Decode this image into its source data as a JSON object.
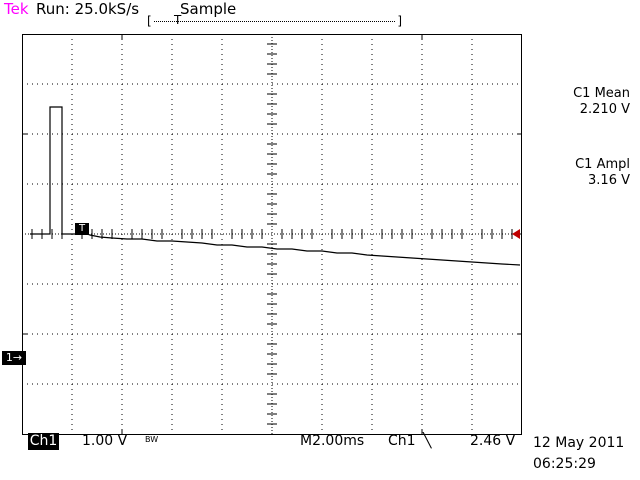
{
  "header": {
    "brand": "Tek",
    "run_status": "Run: 25.0kS/s",
    "acq_mode": "Sample",
    "timebar_left": "[",
    "timebar_right": "]",
    "timebar_trigger": "T"
  },
  "markers": {
    "channel_marker": "1→",
    "trigger_marker": "T"
  },
  "measurements": [
    {
      "label": "C1 Mean",
      "value": "2.210 V"
    },
    {
      "label": "C1 Ampl",
      "value": "3.16 V"
    }
  ],
  "footer": {
    "channel": "Ch1",
    "volts_per_div": "1.00 V",
    "bw_flag": "BW",
    "timebase": "M2.00ms",
    "trigger_source": "Ch1",
    "trigger_slope": "╲",
    "trigger_level": "2.46 V",
    "date": "12 May 2011",
    "time": "06:25:29"
  },
  "colors": {
    "brand": "#ff00ff",
    "trace": "#000000",
    "level_arrow": "#c00000"
  }
}
